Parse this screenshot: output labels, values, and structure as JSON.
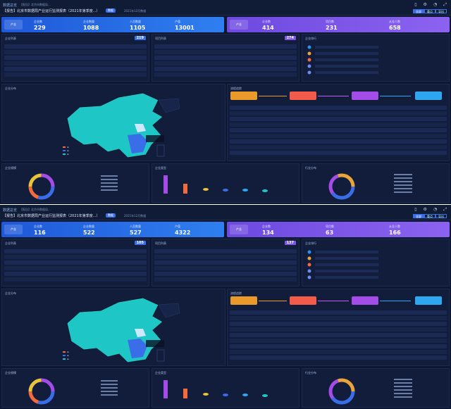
{
  "dashboards": [
    {
      "brand": "数据总览",
      "breadcrumb": "【报告】北京市数据局...",
      "title": "【报告】北京市数据局产业运行监测报表（2021年第季度...）",
      "tag": "数据",
      "timestamp": "2021年12月数据",
      "segment": [
        "全部",
        "重点",
        "导出"
      ],
      "kpi_left": {
        "badge": "产业",
        "metrics": [
          {
            "label": "企业数",
            "value": "229"
          },
          {
            "label": "企业数量",
            "value": "1088"
          },
          {
            "label": "人员数量",
            "value": "1105"
          },
          {
            "label": "产值",
            "value": "13001"
          }
        ]
      },
      "kpi_right": {
        "badge": "产业",
        "metrics": [
          {
            "label": "企业数",
            "value": "414"
          },
          {
            "label": "项目数",
            "value": "231"
          },
          {
            "label": "从业人数",
            "value": "658"
          }
        ]
      },
      "panel_a": {
        "title": "企业列表",
        "count": "219"
      },
      "panel_b": {
        "title": "项目列表",
        "count": "274"
      },
      "panel_c": {
        "title": "企业排行"
      },
      "map_title": "企业分布",
      "flow_title": "流程追踪",
      "bottom1": "企业规模",
      "bottom2": "企业类型",
      "bottom3": "行业分布"
    },
    {
      "brand": "数据总览",
      "breadcrumb": "【报告】北京市数据局...",
      "title": "【报告】北京市数据局产业运行监测报表（2021年第季度...）",
      "tag": "数据",
      "timestamp": "2021年12月数据",
      "segment": [
        "全部",
        "重点",
        "导出"
      ],
      "kpi_left": {
        "badge": "产业",
        "metrics": [
          {
            "label": "企业数",
            "value": "116"
          },
          {
            "label": "企业数量",
            "value": "522"
          },
          {
            "label": "人员数量",
            "value": "527"
          },
          {
            "label": "产值",
            "value": "4322"
          }
        ]
      },
      "kpi_right": {
        "badge": "产业",
        "metrics": [
          {
            "label": "企业数",
            "value": "134"
          },
          {
            "label": "项目数",
            "value": "63"
          },
          {
            "label": "从业人数",
            "value": "166"
          }
        ]
      },
      "panel_a": {
        "title": "企业列表",
        "count": "105"
      },
      "panel_b": {
        "title": "项目列表",
        "count": "137"
      },
      "panel_c": {
        "title": "企业排行"
      },
      "map_title": "企业分布",
      "flow_title": "流程追踪",
      "bottom1": "企业规模",
      "bottom2": "企业类型",
      "bottom3": "行业分布"
    }
  ],
  "colors": {
    "bg": "#0d1730",
    "blue": "#2f7ff0",
    "purple": "#8c63f0",
    "teal": "#1fc6c6"
  }
}
